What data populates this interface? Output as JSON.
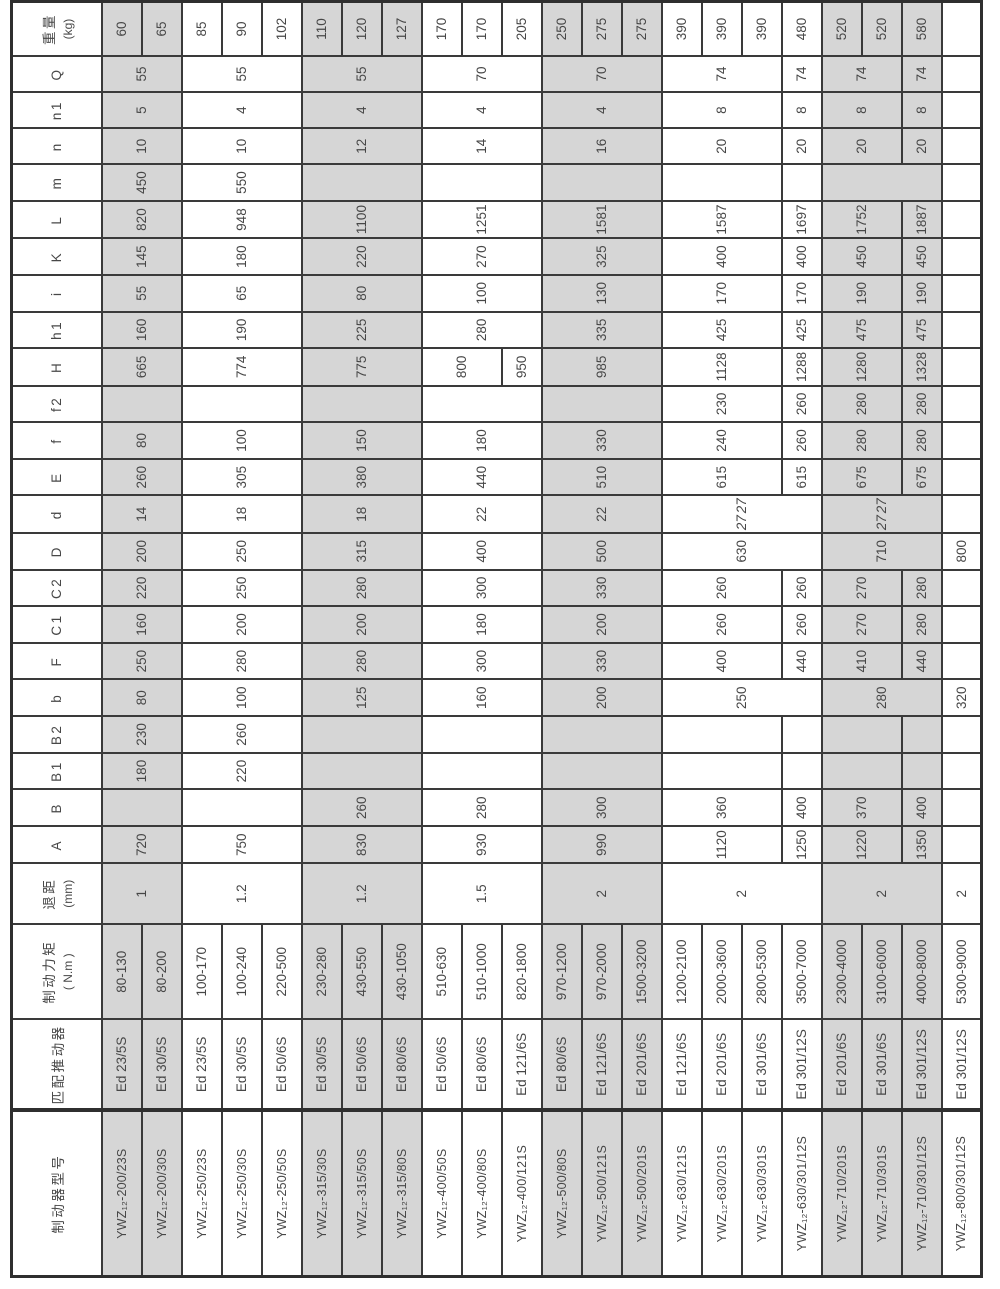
{
  "page": {
    "background": "#ffffff",
    "grid_color": "#3a3a3a",
    "shade_color": "#d6d6d6",
    "text_color": "#474747"
  },
  "table": {
    "columns": [
      {
        "key": "model",
        "label": "制动器型号"
      },
      {
        "key": "thruster",
        "label": "匹配推动器"
      },
      {
        "key": "torque",
        "label": "制动力矩",
        "label2": "( N.m )"
      },
      {
        "key": "gap",
        "label": "退距",
        "label2": "(mm)"
      },
      {
        "key": "A",
        "label": "A"
      },
      {
        "key": "B",
        "label": "B"
      },
      {
        "key": "B1",
        "label": "B1"
      },
      {
        "key": "B2",
        "label": "B2"
      },
      {
        "key": "b",
        "label": "b"
      },
      {
        "key": "F",
        "label": "F"
      },
      {
        "key": "C1",
        "label": "C1"
      },
      {
        "key": "C2",
        "label": "C2"
      },
      {
        "key": "D",
        "label": "D"
      },
      {
        "key": "d",
        "label": "d"
      },
      {
        "key": "E",
        "label": "E"
      },
      {
        "key": "f",
        "label": "f"
      },
      {
        "key": "f2",
        "label": "f2"
      },
      {
        "key": "H",
        "label": "H"
      },
      {
        "key": "h1",
        "label": "h1"
      },
      {
        "key": "i",
        "label": "i"
      },
      {
        "key": "K",
        "label": "K"
      },
      {
        "key": "L",
        "label": "L"
      },
      {
        "key": "m",
        "label": "m"
      },
      {
        "key": "n",
        "label": "n"
      },
      {
        "key": "n1",
        "label": "n1"
      },
      {
        "key": "Q",
        "label": "Q"
      },
      {
        "key": "weight",
        "label": "重量",
        "label2": "(kg)"
      }
    ],
    "models": [
      {
        "name": "YWZ₁₂-200/23S",
        "thruster": "Ed 23/5S",
        "torque": "80-130",
        "weight": "60",
        "shaded": true
      },
      {
        "name": "YWZ₁₂-200/30S",
        "thruster": "Ed 30/5S",
        "torque": "80-200",
        "weight": "65",
        "shaded": true
      },
      {
        "name": "YWZ₁₂-250/23S",
        "thruster": "Ed 23/5S",
        "torque": "100-170",
        "weight": "85",
        "shaded": false
      },
      {
        "name": "YWZ₁₂-250/30S",
        "thruster": "Ed 30/5S",
        "torque": "100-240",
        "weight": "90",
        "shaded": false
      },
      {
        "name": "YWZ₁₂-250/50S",
        "thruster": "Ed 50/6S",
        "torque": "220-500",
        "weight": "102",
        "shaded": false
      },
      {
        "name": "YWZ₁₂-315/30S",
        "thruster": "Ed 30/5S",
        "torque": "230-280",
        "weight": "110",
        "shaded": true
      },
      {
        "name": "YWZ₁₂-315/50S",
        "thruster": "Ed 50/6S",
        "torque": "430-550",
        "weight": "120",
        "shaded": true
      },
      {
        "name": "YWZ₁₂-315/80S",
        "thruster": "Ed 80/6S",
        "torque": "430-1050",
        "weight": "127",
        "shaded": true
      },
      {
        "name": "YWZ₁₂-400/50S",
        "thruster": "Ed 50/6S",
        "torque": "510-630",
        "weight": "170",
        "shaded": false
      },
      {
        "name": "YWZ₁₂-400/80S",
        "thruster": "Ed 80/6S",
        "torque": "510-1000",
        "weight": "170",
        "shaded": false
      },
      {
        "name": "YWZ₁₂-400/121S",
        "thruster": "Ed 121/6S",
        "torque": "820-1800",
        "weight": "205",
        "shaded": false
      },
      {
        "name": "YWZ₁₂-500/80S",
        "thruster": "Ed 80/6S",
        "torque": "970-1200",
        "weight": "250",
        "shaded": true
      },
      {
        "name": "YWZ₁₂-500/121S",
        "thruster": "Ed 121/6S",
        "torque": "970-2000",
        "weight": "275",
        "shaded": true
      },
      {
        "name": "YWZ₁₂-500/201S",
        "thruster": "Ed 201/6S",
        "torque": "1500-3200",
        "weight": "275",
        "shaded": true
      },
      {
        "name": "YWZ₁₂-630/121S",
        "thruster": "Ed 121/6S",
        "torque": "1200-2100",
        "weight": "390",
        "shaded": false
      },
      {
        "name": "YWZ₁₂-630/201S",
        "thruster": "Ed 201/6S",
        "torque": "2000-3600",
        "weight": "390",
        "shaded": false
      },
      {
        "name": "YWZ₁₂-630/301S",
        "thruster": "Ed 301/6S",
        "torque": "2800-5300",
        "weight": "390",
        "shaded": false
      },
      {
        "name": "YWZ₁₂-630/301/12S",
        "thruster": "Ed 301/12S",
        "torque": "3500-7000",
        "weight": "480",
        "shaded": false
      },
      {
        "name": "YWZ₁₂-710/201S",
        "thruster": "Ed 201/6S",
        "torque": "2300-4000",
        "weight": "520",
        "shaded": true
      },
      {
        "name": "YWZ₁₂-710/301S",
        "thruster": "Ed 301/6S",
        "torque": "3100-6000",
        "weight": "520",
        "shaded": true
      },
      {
        "name": "YWZ₁₂-710/301/12S",
        "thruster": "Ed 301/12S",
        "torque": "4000-8000",
        "weight": "580",
        "shaded": true
      },
      {
        "name": "YWZ₁₂-800/301/12S",
        "thruster": "Ed 301/12S",
        "torque": "5300-9000",
        "weight": "",
        "shaded": false
      }
    ],
    "spans": {
      "gap": [
        [
          1,
          2,
          "1"
        ],
        [
          3,
          3,
          "1.2"
        ],
        [
          6,
          3,
          "1.2"
        ],
        [
          9,
          3,
          "1.5"
        ],
        [
          12,
          3,
          "2"
        ],
        [
          15,
          4,
          "2"
        ],
        [
          19,
          3,
          "2"
        ],
        [
          22,
          1,
          "2"
        ]
      ],
      "A": [
        [
          1,
          2,
          "720"
        ],
        [
          3,
          3,
          "750"
        ],
        [
          6,
          3,
          "830"
        ],
        [
          9,
          3,
          "930"
        ],
        [
          12,
          3,
          "990"
        ],
        [
          15,
          3,
          "1120"
        ],
        [
          18,
          1,
          "1250"
        ],
        [
          19,
          2,
          "1220"
        ],
        [
          21,
          1,
          "1350"
        ],
        [
          22,
          1,
          ""
        ]
      ],
      "B": [
        [
          1,
          2,
          ""
        ],
        [
          3,
          3,
          ""
        ],
        [
          6,
          3,
          "260"
        ],
        [
          9,
          3,
          "280"
        ],
        [
          12,
          3,
          "300"
        ],
        [
          15,
          3,
          "360"
        ],
        [
          18,
          1,
          "400"
        ],
        [
          19,
          2,
          "370"
        ],
        [
          21,
          1,
          "400"
        ],
        [
          22,
          1,
          ""
        ]
      ],
      "B1": [
        [
          1,
          2,
          "180"
        ],
        [
          3,
          3,
          "220"
        ],
        [
          6,
          3,
          ""
        ],
        [
          9,
          3,
          ""
        ],
        [
          12,
          3,
          ""
        ],
        [
          15,
          3,
          ""
        ],
        [
          18,
          1,
          ""
        ],
        [
          19,
          2,
          ""
        ],
        [
          21,
          1,
          ""
        ],
        [
          22,
          1,
          ""
        ]
      ],
      "B2": [
        [
          1,
          2,
          "230"
        ],
        [
          3,
          3,
          "260"
        ],
        [
          6,
          3,
          ""
        ],
        [
          9,
          3,
          ""
        ],
        [
          12,
          3,
          ""
        ],
        [
          15,
          3,
          ""
        ],
        [
          18,
          1,
          ""
        ],
        [
          19,
          2,
          ""
        ],
        [
          21,
          1,
          ""
        ],
        [
          22,
          1,
          ""
        ]
      ],
      "b": [
        [
          1,
          2,
          "80"
        ],
        [
          3,
          3,
          "100"
        ],
        [
          6,
          3,
          "125"
        ],
        [
          9,
          3,
          "160"
        ],
        [
          12,
          3,
          "200"
        ],
        [
          15,
          4,
          "250"
        ],
        [
          19,
          3,
          "280"
        ],
        [
          22,
          1,
          "320"
        ]
      ],
      "F": [
        [
          1,
          2,
          "250"
        ],
        [
          3,
          3,
          "280"
        ],
        [
          6,
          3,
          "280"
        ],
        [
          9,
          3,
          "300"
        ],
        [
          12,
          3,
          "330"
        ],
        [
          15,
          3,
          "400"
        ],
        [
          18,
          1,
          "440"
        ],
        [
          19,
          2,
          "410"
        ],
        [
          21,
          1,
          "440"
        ],
        [
          22,
          1,
          ""
        ]
      ],
      "C1": [
        [
          1,
          2,
          "160"
        ],
        [
          3,
          3,
          "200"
        ],
        [
          6,
          3,
          "200"
        ],
        [
          9,
          3,
          "180"
        ],
        [
          12,
          3,
          "200"
        ],
        [
          15,
          3,
          "260"
        ],
        [
          18,
          1,
          "260"
        ],
        [
          19,
          2,
          "270"
        ],
        [
          21,
          1,
          "280"
        ],
        [
          22,
          1,
          ""
        ]
      ],
      "C2": [
        [
          1,
          2,
          "220"
        ],
        [
          3,
          3,
          "250"
        ],
        [
          6,
          3,
          "280"
        ],
        [
          9,
          3,
          "300"
        ],
        [
          12,
          3,
          "330"
        ],
        [
          15,
          3,
          "260"
        ],
        [
          18,
          1,
          "260"
        ],
        [
          19,
          2,
          "270"
        ],
        [
          21,
          1,
          "280"
        ],
        [
          22,
          1,
          ""
        ]
      ],
      "D": [
        [
          1,
          2,
          "200"
        ],
        [
          3,
          3,
          "250"
        ],
        [
          6,
          3,
          "315"
        ],
        [
          9,
          3,
          "400"
        ],
        [
          12,
          3,
          "500"
        ],
        [
          15,
          4,
          "630"
        ],
        [
          19,
          3,
          "710"
        ],
        [
          22,
          1,
          "800"
        ]
      ],
      "d": [
        [
          1,
          2,
          "14"
        ],
        [
          3,
          3,
          "18"
        ],
        [
          6,
          3,
          "18"
        ],
        [
          9,
          3,
          "22"
        ],
        [
          12,
          3,
          "22"
        ],
        [
          15,
          4,
          "27",
          "x2"
        ],
        [
          19,
          3,
          "27",
          "x2"
        ],
        [
          22,
          1,
          ""
        ]
      ],
      "E": [
        [
          1,
          2,
          "260"
        ],
        [
          3,
          3,
          "305"
        ],
        [
          6,
          3,
          "380"
        ],
        [
          9,
          3,
          "440"
        ],
        [
          12,
          3,
          "510"
        ],
        [
          15,
          3,
          "615"
        ],
        [
          18,
          1,
          "615"
        ],
        [
          19,
          2,
          "675"
        ],
        [
          21,
          1,
          "675"
        ],
        [
          22,
          1,
          ""
        ]
      ],
      "f": [
        [
          1,
          2,
          "80"
        ],
        [
          3,
          3,
          "100"
        ],
        [
          6,
          3,
          "150"
        ],
        [
          9,
          3,
          "180"
        ],
        [
          12,
          3,
          "330"
        ],
        [
          15,
          3,
          "240"
        ],
        [
          18,
          1,
          "260"
        ],
        [
          19,
          2,
          "280"
        ],
        [
          21,
          1,
          "280"
        ],
        [
          22,
          1,
          ""
        ]
      ],
      "f2": [
        [
          1,
          2,
          ""
        ],
        [
          3,
          3,
          ""
        ],
        [
          6,
          3,
          ""
        ],
        [
          9,
          3,
          ""
        ],
        [
          12,
          3,
          ""
        ],
        [
          15,
          3,
          "230"
        ],
        [
          18,
          1,
          "260"
        ],
        [
          19,
          2,
          "280"
        ],
        [
          21,
          1,
          "280"
        ],
        [
          22,
          1,
          ""
        ]
      ],
      "H": [
        [
          1,
          2,
          "665"
        ],
        [
          3,
          3,
          "774"
        ],
        [
          6,
          3,
          "775"
        ],
        [
          9,
          2,
          "800"
        ],
        [
          11,
          1,
          "950"
        ],
        [
          12,
          3,
          "985"
        ],
        [
          15,
          3,
          "1128"
        ],
        [
          18,
          1,
          "1288"
        ],
        [
          19,
          2,
          "1280"
        ],
        [
          21,
          1,
          "1328"
        ],
        [
          22,
          1,
          ""
        ]
      ],
      "h1": [
        [
          1,
          2,
          "160"
        ],
        [
          3,
          3,
          "190"
        ],
        [
          6,
          3,
          "225"
        ],
        [
          9,
          3,
          "280"
        ],
        [
          12,
          3,
          "335"
        ],
        [
          15,
          3,
          "425"
        ],
        [
          18,
          1,
          "425"
        ],
        [
          19,
          2,
          "475"
        ],
        [
          21,
          1,
          "475"
        ],
        [
          22,
          1,
          ""
        ]
      ],
      "i": [
        [
          1,
          2,
          "55"
        ],
        [
          3,
          3,
          "65"
        ],
        [
          6,
          3,
          "80"
        ],
        [
          9,
          3,
          "100"
        ],
        [
          12,
          3,
          "130"
        ],
        [
          15,
          3,
          "170"
        ],
        [
          18,
          1,
          "170"
        ],
        [
          19,
          2,
          "190"
        ],
        [
          21,
          1,
          "190"
        ],
        [
          22,
          1,
          ""
        ]
      ],
      "K": [
        [
          1,
          2,
          "145"
        ],
        [
          3,
          3,
          "180"
        ],
        [
          6,
          3,
          "220"
        ],
        [
          9,
          3,
          "270"
        ],
        [
          12,
          3,
          "325"
        ],
        [
          15,
          3,
          "400"
        ],
        [
          18,
          1,
          "400"
        ],
        [
          19,
          2,
          "450"
        ],
        [
          21,
          1,
          "450"
        ],
        [
          22,
          1,
          ""
        ]
      ],
      "L": [
        [
          1,
          2,
          "820"
        ],
        [
          3,
          3,
          "948"
        ],
        [
          6,
          3,
          "1100"
        ],
        [
          9,
          3,
          "1251"
        ],
        [
          12,
          3,
          "1581"
        ],
        [
          15,
          3,
          "1587"
        ],
        [
          18,
          1,
          "1697"
        ],
        [
          19,
          2,
          "1752"
        ],
        [
          21,
          1,
          "1887"
        ],
        [
          22,
          1,
          ""
        ]
      ],
      "m": [
        [
          1,
          2,
          "450"
        ],
        [
          3,
          3,
          "550"
        ],
        [
          6,
          3,
          ""
        ],
        [
          9,
          3,
          ""
        ],
        [
          12,
          3,
          ""
        ],
        [
          15,
          3,
          ""
        ],
        [
          18,
          1,
          ""
        ],
        [
          19,
          3,
          ""
        ],
        [
          22,
          1,
          ""
        ]
      ],
      "n": [
        [
          1,
          2,
          "10"
        ],
        [
          3,
          3,
          "10"
        ],
        [
          6,
          3,
          "12"
        ],
        [
          9,
          3,
          "14"
        ],
        [
          12,
          3,
          "16"
        ],
        [
          15,
          3,
          "20"
        ],
        [
          18,
          1,
          "20"
        ],
        [
          19,
          2,
          "20"
        ],
        [
          21,
          1,
          "20"
        ],
        [
          22,
          1,
          ""
        ]
      ],
      "n1": [
        [
          1,
          2,
          "5"
        ],
        [
          3,
          3,
          "4"
        ],
        [
          6,
          3,
          "4"
        ],
        [
          9,
          3,
          "4"
        ],
        [
          12,
          3,
          "4"
        ],
        [
          15,
          3,
          "8"
        ],
        [
          18,
          1,
          "8"
        ],
        [
          19,
          2,
          "8"
        ],
        [
          21,
          1,
          "8"
        ],
        [
          22,
          1,
          ""
        ]
      ],
      "Q": [
        [
          1,
          2,
          "55"
        ],
        [
          3,
          3,
          "55"
        ],
        [
          6,
          3,
          "55"
        ],
        [
          9,
          3,
          "70"
        ],
        [
          12,
          3,
          "70"
        ],
        [
          15,
          3,
          "74"
        ],
        [
          18,
          1,
          "74"
        ],
        [
          19,
          2,
          "74"
        ],
        [
          21,
          1,
          "74"
        ],
        [
          22,
          1,
          ""
        ]
      ]
    }
  }
}
